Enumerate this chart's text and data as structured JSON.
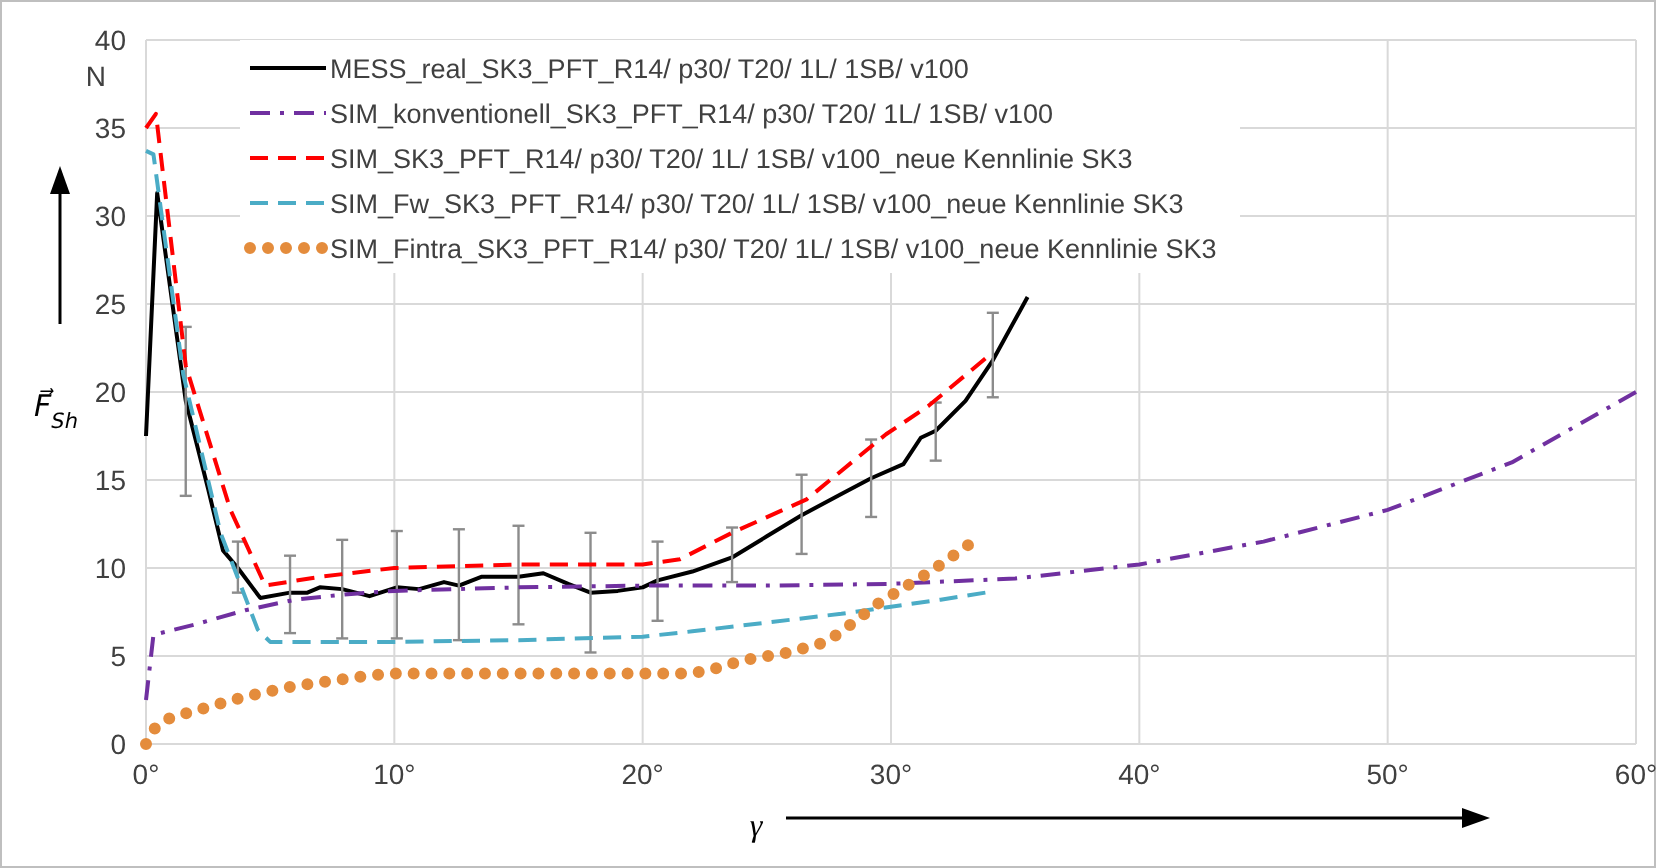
{
  "chart_data": {
    "type": "line",
    "xlabel": "γ",
    "ylabel": "F⃗$_{Sh}$",
    "annotations": [
      "N"
    ],
    "xlim": [
      0,
      60
    ],
    "ylim": [
      0,
      40
    ],
    "xticks": [
      {
        "value": 0,
        "label": "0°"
      },
      {
        "value": 10,
        "label": "10°"
      },
      {
        "value": 20,
        "label": "20°"
      },
      {
        "value": 30,
        "label": "30°"
      },
      {
        "value": 40,
        "label": "40°"
      },
      {
        "value": 50,
        "label": "50°"
      },
      {
        "value": 60,
        "label": "60°"
      }
    ],
    "yticks": [
      0,
      5,
      10,
      15,
      20,
      25,
      30,
      35,
      40
    ],
    "grid": true,
    "legend": "top",
    "marker": "none",
    "series": [
      {
        "name": "MESS_real_SK3_PFT_R14/ p30/ T20/ 1L/ 1SB/ v100",
        "color": "#000000",
        "line_style": "solid",
        "x": [
          0,
          0.45,
          1.6,
          2.5,
          3.1,
          3.7,
          4.6,
          5.8,
          6.5,
          7.0,
          7.9,
          9.0,
          10.1,
          11.0,
          12.0,
          12.6,
          13.5,
          15.0,
          16.0,
          17.0,
          17.9,
          19.0,
          20.0,
          20.6,
          22.0,
          23.6,
          25.0,
          26.4,
          28.0,
          29.2,
          30.5,
          31.2,
          31.8,
          33.0,
          34.1,
          35.5
        ],
        "values": [
          17.5,
          31.3,
          19.5,
          14.5,
          11,
          10,
          8.3,
          8.6,
          8.6,
          8.9,
          8.8,
          8.4,
          8.9,
          8.8,
          9.2,
          9.0,
          9.5,
          9.5,
          9.7,
          9.1,
          8.6,
          8.7,
          8.9,
          9.3,
          9.8,
          10.6,
          11.8,
          13.0,
          14.2,
          15.1,
          15.9,
          17.4,
          17.8,
          19.5,
          21.8,
          25.4
        ],
        "errors": [
          null,
          null,
          [
            14.1,
            23.7
          ],
          null,
          null,
          [
            8.6,
            11.5
          ],
          null,
          [
            6.3,
            10.7
          ],
          null,
          null,
          [
            6.0,
            11.6
          ],
          null,
          [
            6.0,
            12.1
          ],
          null,
          null,
          [
            5.9,
            12.2
          ],
          null,
          [
            6.8,
            12.4
          ],
          null,
          null,
          [
            5.2,
            12.0
          ],
          null,
          null,
          [
            7.0,
            11.5
          ],
          null,
          [
            9.2,
            12.3
          ],
          null,
          [
            10.8,
            15.3
          ],
          null,
          [
            12.9,
            17.3
          ],
          null,
          null,
          [
            16.1,
            19.4
          ],
          null,
          [
            19.7,
            24.5
          ],
          null
        ]
      },
      {
        "name": "SIM_konventionell_SK3_PFT_R14/ p30/ T20/ 1L/ 1SB/ v100",
        "color": "#7030a0",
        "line_style": "dashdot",
        "x": [
          0,
          0.3,
          2,
          4,
          6,
          8,
          10,
          15,
          20,
          25,
          30,
          35,
          40,
          45,
          50,
          55,
          60
        ],
        "values": [
          2.5,
          6.2,
          6.8,
          7.6,
          8.2,
          8.5,
          8.7,
          8.9,
          9.0,
          9.0,
          9.1,
          9.4,
          10.2,
          11.5,
          13.3,
          16.0,
          20.0
        ]
      },
      {
        "name": "SIM_SK3_PFT_R14/ p30/ T20/ 1L/ 1SB/ v100_neue Kennlinie SK3",
        "color": "#ff0000",
        "line_style": "dashed",
        "x": [
          0,
          0.4,
          1.6,
          3.4,
          4.8,
          7,
          10,
          15,
          20,
          21.5,
          23.6,
          26.6,
          29.8,
          31.5,
          33.8
        ],
        "values": [
          35,
          35.8,
          21.5,
          13.3,
          9.0,
          9.5,
          10.0,
          10.2,
          10.2,
          10.5,
          12.0,
          13.9,
          17.6,
          19.2,
          21.9
        ]
      },
      {
        "name": "SIM_Fw_SK3_PFT_R14/ p30/ T20/ 1L/ 1SB/ v100_neue Kennlinie SK3",
        "color": "#4bacc6",
        "line_style": "dashed",
        "x": [
          0,
          0.3,
          1.5,
          3,
          4.5,
          5,
          7,
          10,
          15,
          20,
          22,
          25,
          28,
          30,
          32,
          33.8
        ],
        "values": [
          33.7,
          33.5,
          21,
          12,
          6.5,
          5.8,
          5.8,
          5.8,
          5.9,
          6.1,
          6.4,
          6.9,
          7.4,
          7.8,
          8.2,
          8.6
        ]
      },
      {
        "name": "SIM_Fintra_SK3_PFT_R14/ p30/ T20/ 1L/ 1SB/ v100_neue Kennlinie SK3",
        "color": "#e48c3c",
        "line_style": "dotted",
        "x": [
          0,
          0.4,
          1,
          2,
          3,
          4,
          5,
          6,
          7,
          8,
          9,
          10,
          15,
          21.9,
          22.7,
          23.4,
          24.2,
          25.9,
          27.4,
          28.2,
          29.5,
          31.0,
          31.7,
          32.4,
          33.1
        ],
        "values": [
          0,
          1.0,
          1.5,
          1.9,
          2.3,
          2.7,
          3.0,
          3.3,
          3.5,
          3.7,
          3.9,
          4.0,
          4.0,
          4.0,
          4.2,
          4.5,
          4.8,
          5.2,
          5.8,
          6.6,
          8.0,
          9.3,
          9.9,
          10.6,
          11.3
        ]
      }
    ]
  }
}
